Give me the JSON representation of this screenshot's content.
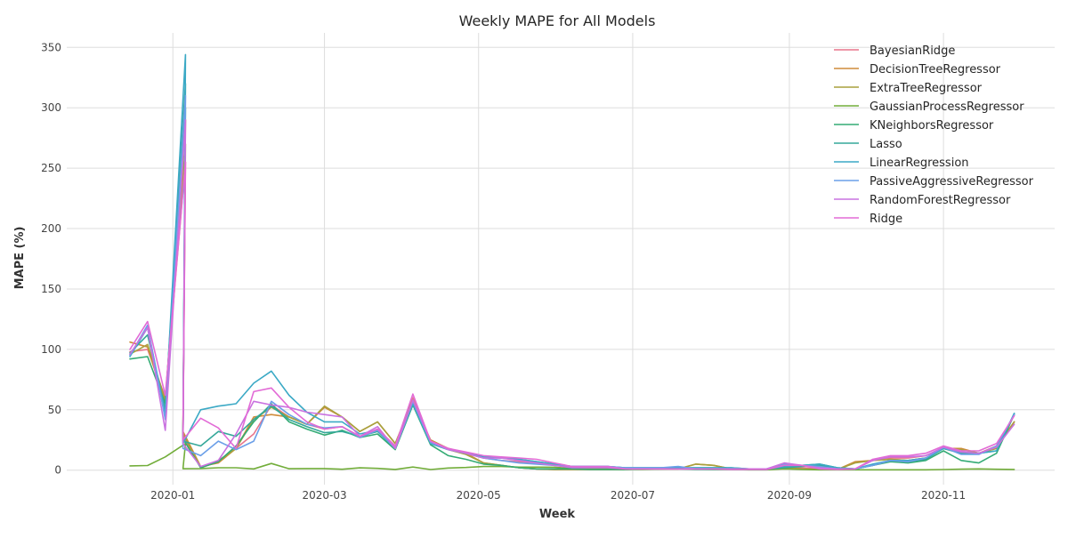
{
  "chart_data": {
    "type": "line",
    "title": "Weekly MAPE for All Models",
    "xlabel": "Week",
    "ylabel": "MAPE (%)",
    "x_axis_type": "date",
    "xlim": [
      "2019-11-20",
      "2020-12-15"
    ],
    "ylim": [
      -12,
      362
    ],
    "x_ticks": [
      "2020-01-01",
      "2020-03-01",
      "2020-05-01",
      "2020-07-01",
      "2020-09-01",
      "2020-11-01"
    ],
    "x_tick_labels": [
      "2020-01",
      "2020-03",
      "2020-05",
      "2020-07",
      "2020-09",
      "2020-11"
    ],
    "y_ticks": [
      0,
      50,
      100,
      150,
      200,
      250,
      300,
      350
    ],
    "y_tick_labels": [
      "0",
      "50",
      "100",
      "150",
      "200",
      "250",
      "300",
      "350"
    ],
    "grid": true,
    "legend_position": "top-right",
    "x": [
      "2019-12-15",
      "2019-12-22",
      "2019-12-29",
      "2020-01-05",
      "2020-01-12",
      "2020-01-19",
      "2020-01-26",
      "2020-02-02",
      "2020-02-09",
      "2020-02-16",
      "2020-02-23",
      "2020-03-01",
      "2020-03-08",
      "2020-03-15",
      "2020-03-22",
      "2020-03-29",
      "2020-04-05",
      "2020-04-12",
      "2020-04-19",
      "2020-04-26",
      "2020-05-03",
      "2020-05-10",
      "2020-05-17",
      "2020-05-24",
      "2020-05-31",
      "2020-06-07",
      "2020-06-14",
      "2020-06-21",
      "2020-06-28",
      "2020-07-05",
      "2020-07-12",
      "2020-07-19",
      "2020-07-26",
      "2020-08-02",
      "2020-08-09",
      "2020-08-16",
      "2020-08-23",
      "2020-08-30",
      "2020-09-06",
      "2020-09-13",
      "2020-09-20",
      "2020-09-27",
      "2020-10-04",
      "2020-10-11",
      "2020-10-18",
      "2020-10-25",
      "2020-11-01",
      "2020-11-08",
      "2020-11-15",
      "2020-11-22",
      "2020-11-29"
    ],
    "spike_date": "2020-01-06",
    "series": [
      {
        "name": "BayesianRidge",
        "color": "#e8758c",
        "spike": 255,
        "values": [
          98,
          100,
          60,
          28,
          2,
          8,
          18,
          30,
          54,
          44,
          38,
          34,
          36,
          28,
          34,
          20,
          60,
          22,
          17,
          14,
          10,
          8,
          7,
          6,
          5,
          3,
          2,
          2,
          1,
          1,
          1,
          1,
          1,
          1,
          0.5,
          0.5,
          0.5,
          3,
          2,
          1,
          0.5,
          1,
          8,
          10,
          10,
          12,
          18,
          14,
          14,
          20,
          40
        ]
      },
      {
        "name": "DecisionTreeRegressor",
        "color": "#cf8b3a",
        "spike": 290,
        "values": [
          106,
          102,
          55,
          32,
          3,
          6,
          18,
          44,
          46,
          44,
          38,
          52,
          44,
          32,
          40,
          22,
          57,
          25,
          18,
          14,
          6,
          4,
          2,
          1,
          0.5,
          0.5,
          0.5,
          0.5,
          0.5,
          1,
          1,
          1,
          5,
          4,
          1,
          0.5,
          0.5,
          2,
          1,
          0.5,
          0.5,
          7,
          8,
          9,
          8,
          10,
          18,
          18,
          14,
          19,
          40
        ]
      },
      {
        "name": "ExtraTreeRegressor",
        "color": "#a8a13d",
        "spike": 270,
        "values": [
          96,
          104,
          58,
          30,
          2,
          7,
          18,
          42,
          52,
          44,
          38,
          53,
          44,
          32,
          40,
          22,
          58,
          24,
          17,
          13,
          6,
          4,
          2,
          1,
          0.5,
          0.5,
          0.5,
          0.5,
          0.5,
          1,
          1,
          1,
          5,
          4,
          1,
          0.5,
          0.5,
          2,
          1,
          0.5,
          0.5,
          6,
          8,
          9,
          8,
          10,
          18,
          17,
          14,
          18,
          40
        ]
      },
      {
        "name": "GaussianProcessRegressor",
        "color": "#72ad3a",
        "spike": 22,
        "values": [
          3.5,
          3.8,
          11,
          1.2,
          1.3,
          2,
          2,
          1,
          5.5,
          1.2,
          1.3,
          1.3,
          0.7,
          1.9,
          1.5,
          0.6,
          2.6,
          0.5,
          1.8,
          2.2,
          3,
          3,
          2.5,
          2.5,
          2.4,
          1.5,
          1.2,
          1.3,
          0.5,
          0.5,
          0.8,
          1.4,
          0.8,
          0.5,
          0.5,
          0.3,
          0.3,
          1,
          0.5,
          0.3,
          0.3,
          0.3,
          0.3,
          0.3,
          0.3,
          0.3,
          0.5,
          0.8,
          1,
          0.7,
          0.6
        ]
      },
      {
        "name": "KNeighborsRegressor",
        "color": "#34ab75",
        "spike": 300,
        "values": [
          92,
          94,
          55,
          26,
          2,
          7,
          20,
          40,
          55,
          40,
          34,
          29,
          33,
          27,
          30,
          17,
          54,
          21,
          12,
          9,
          5,
          4,
          2,
          1,
          1,
          1,
          0.5,
          0.5,
          0.5,
          1,
          1,
          1,
          0.5,
          0.5,
          0.5,
          0.5,
          0.5,
          3,
          4,
          5,
          2,
          1,
          4,
          7,
          6,
          8,
          16,
          8,
          6,
          14,
          46
        ]
      },
      {
        "name": "Lasso",
        "color": "#35a89a",
        "spike": 320,
        "values": [
          97,
          112,
          50,
          24,
          20,
          32,
          28,
          42,
          53,
          42,
          36,
          31,
          32,
          28,
          32,
          18,
          55,
          22,
          17,
          14,
          11,
          10,
          9,
          7,
          5,
          3,
          3,
          3,
          2,
          2,
          2,
          2,
          2,
          2,
          2,
          1,
          1,
          2,
          3,
          4,
          2,
          1,
          4,
          8,
          7,
          9,
          18,
          14,
          14,
          16,
          47
        ]
      },
      {
        "name": "LinearRegression",
        "color": "#3ba9c5",
        "spike": 344,
        "values": [
          94,
          118,
          47,
          22,
          50,
          53,
          55,
          72,
          82,
          62,
          48,
          40,
          40,
          30,
          33,
          18,
          55,
          22,
          17,
          14,
          11,
          10,
          9,
          7,
          5,
          3,
          3,
          3,
          2,
          2,
          2,
          2,
          2,
          2,
          2,
          1,
          1,
          3,
          4,
          5,
          2,
          1,
          5,
          8,
          8,
          10,
          18,
          15,
          14,
          16,
          47
        ]
      },
      {
        "name": "PassiveAggressiveRegressor",
        "color": "#6b9fe8",
        "spike": 310,
        "values": [
          95,
          120,
          42,
          18,
          12,
          24,
          17,
          24,
          57,
          46,
          38,
          35,
          36,
          27,
          33,
          18,
          57,
          23,
          17,
          14,
          10,
          8,
          6,
          5,
          4,
          3,
          3,
          3,
          2,
          2,
          2,
          3,
          1,
          1,
          1,
          1,
          1,
          5,
          4,
          3,
          1,
          1,
          4,
          8,
          7,
          10,
          19,
          13,
          13,
          20,
          46
        ]
      },
      {
        "name": "RandomForestRegressor",
        "color": "#c972e0",
        "spike": 290,
        "values": [
          96,
          118,
          33,
          22,
          3,
          8,
          30,
          57,
          54,
          52,
          48,
          46,
          44,
          28,
          36,
          18,
          58,
          24,
          17,
          14,
          10,
          10,
          8,
          6,
          4,
          2,
          2,
          2,
          1,
          1,
          1,
          1,
          1,
          1,
          1,
          1,
          1,
          6,
          4,
          2,
          1,
          1,
          8,
          11,
          11,
          12,
          19,
          15,
          14,
          19,
          38
        ]
      },
      {
        "name": "Ridge",
        "color": "#e26bd6",
        "spike": 255,
        "values": [
          100,
          123,
          62,
          25,
          43,
          35,
          18,
          65,
          68,
          52,
          40,
          34,
          36,
          28,
          34,
          20,
          63,
          24,
          18,
          15,
          12,
          11,
          10,
          9,
          6,
          3,
          3,
          3,
          1,
          1,
          1,
          1,
          1,
          1,
          0.5,
          0.5,
          0.5,
          4,
          4,
          1,
          0.5,
          1,
          9,
          12,
          12,
          14,
          20,
          16,
          16,
          22,
          45
        ]
      }
    ]
  }
}
